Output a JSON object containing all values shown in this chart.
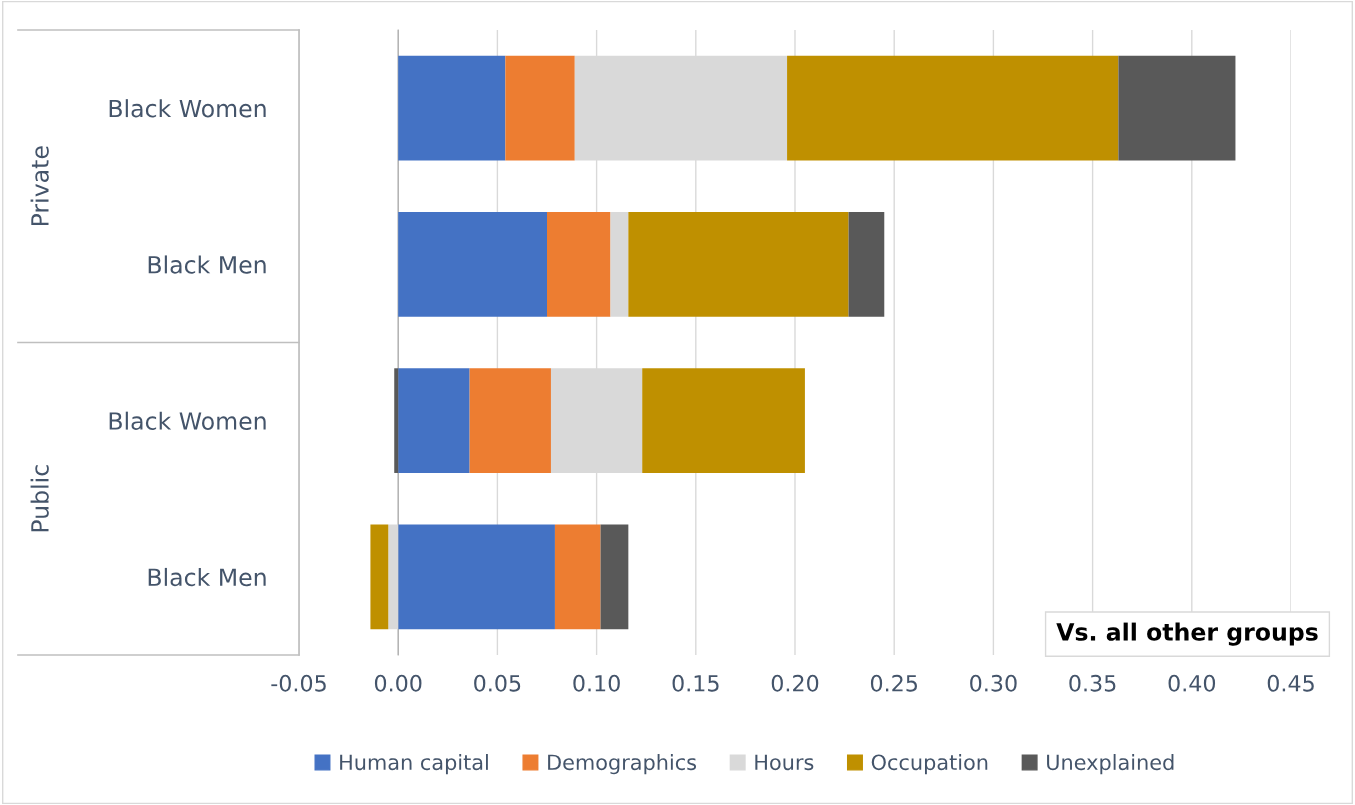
{
  "chart_data": {
    "type": "bar",
    "orientation": "horizontal",
    "stacked": true,
    "categories": [
      "Black Women",
      "Black Men",
      "Black Women",
      "Black Men"
    ],
    "series": [
      {
        "name": "Human capital",
        "color": "#4472c4",
        "values": [
          0.054,
          0.075,
          0.036,
          0.079
        ]
      },
      {
        "name": "Demographics",
        "color": "#ed7d31",
        "values": [
          0.035,
          0.032,
          0.041,
          0.023
        ]
      },
      {
        "name": "Hours",
        "color": "#d9d9d9",
        "values": [
          0.107,
          0.009,
          0.046,
          -0.005
        ]
      },
      {
        "name": "Occupation",
        "color": "#bf9000",
        "values": [
          0.167,
          0.111,
          0.082,
          -0.009
        ]
      },
      {
        "name": "Unexplained",
        "color": "#595959",
        "values": [
          0.059,
          0.018,
          -0.002,
          0.014
        ]
      }
    ],
    "xlim": [
      -0.05,
      0.45
    ],
    "xticks": [
      {
        "value": -0.05,
        "label": "-0.05"
      },
      {
        "value": 0,
        "label": "0.00"
      },
      {
        "value": 0.05,
        "label": "0.05"
      },
      {
        "value": 0.1,
        "label": "0.10"
      },
      {
        "value": 0.15,
        "label": "0.15"
      },
      {
        "value": 0.2,
        "label": "0.20"
      },
      {
        "value": 0.25,
        "label": "0.25"
      },
      {
        "value": 0.3,
        "label": "0.30"
      },
      {
        "value": 0.35,
        "label": "0.35"
      },
      {
        "value": 0.4,
        "label": "0.40"
      },
      {
        "value": 0.45,
        "label": "0.45"
      }
    ],
    "grid": "x",
    "legend": "bottom",
    "annotations": [
      "Private",
      "Public",
      "Vs. all other groups"
    ]
  }
}
